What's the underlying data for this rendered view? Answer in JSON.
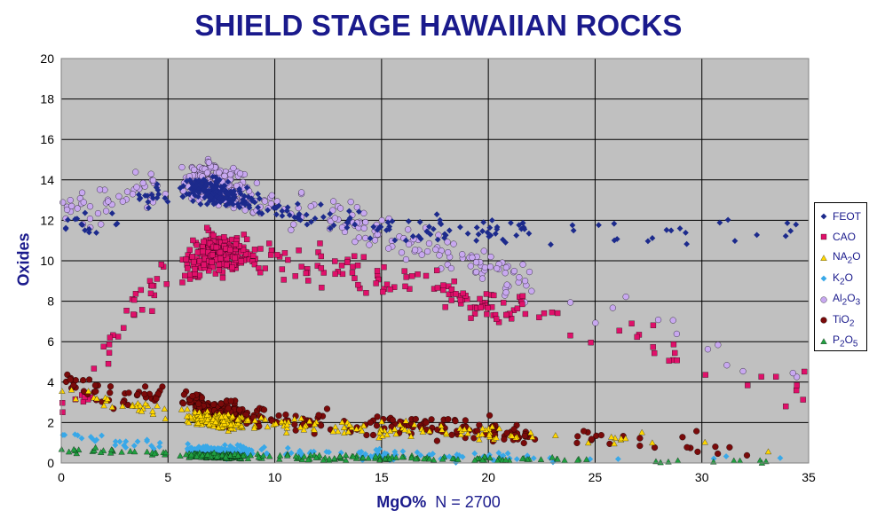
{
  "chart_data": {
    "type": "scatter",
    "title": "SHIELD STAGE HAWAIIAN ROCKS",
    "xlabel": "MgO%",
    "xlabel_note": "N = 2700",
    "ylabel": "Oxides",
    "xlim": [
      0,
      35
    ],
    "ylim": [
      0,
      20
    ],
    "xticks": [
      0,
      5,
      10,
      15,
      20,
      25,
      30,
      35
    ],
    "yticks": [
      0,
      2,
      4,
      6,
      8,
      10,
      12,
      14,
      16,
      18,
      20
    ],
    "grid": true,
    "background": "#c0c0c0",
    "legend_position": "right",
    "series": [
      {
        "name": "FEOT",
        "label_html": "FEOT",
        "marker": "diamond",
        "color": "#1c2a8c",
        "trend": [
          [
            2,
            11.8
          ],
          [
            4,
            13.4
          ],
          [
            6,
            13.6
          ],
          [
            8,
            13.2
          ],
          [
            10,
            12.6
          ],
          [
            13,
            11.9
          ],
          [
            16,
            11.6
          ],
          [
            20,
            11.5
          ],
          [
            25,
            11.4
          ],
          [
            31,
            11.4
          ],
          [
            35,
            11.6
          ]
        ]
      },
      {
        "name": "CAO",
        "label_html": "CAO",
        "marker": "square",
        "color": "#e0106a",
        "trend": [
          [
            1,
            3.0
          ],
          [
            3,
            7.5
          ],
          [
            5,
            9.5
          ],
          [
            7,
            10.5
          ],
          [
            10,
            10.2
          ],
          [
            13,
            9.6
          ],
          [
            16,
            8.9
          ],
          [
            20,
            8.0
          ],
          [
            23,
            7.2
          ],
          [
            27,
            6.0
          ],
          [
            31,
            4.6
          ],
          [
            35,
            3.3
          ]
        ]
      },
      {
        "name": "NA2O",
        "label_html": "NA<sub>2</sub>O",
        "marker": "triangle",
        "color": "#ffd700",
        "trend": [
          [
            0,
            3.5
          ],
          [
            3,
            3.0
          ],
          [
            5,
            2.5
          ],
          [
            7,
            2.1
          ],
          [
            10,
            1.9
          ],
          [
            15,
            1.7
          ],
          [
            20,
            1.5
          ],
          [
            25,
            1.2
          ],
          [
            30,
            1.0
          ],
          [
            35,
            0.4
          ]
        ]
      },
      {
        "name": "K2O",
        "label_html": "K<sub>2</sub>O",
        "marker": "diamond",
        "color": "#38a8e8",
        "trend": [
          [
            0,
            1.5
          ],
          [
            3,
            1.0
          ],
          [
            5,
            0.8
          ],
          [
            7,
            0.6
          ],
          [
            10,
            0.5
          ],
          [
            15,
            0.4
          ],
          [
            20,
            0.3
          ],
          [
            25,
            0.2
          ],
          [
            30,
            0.15
          ],
          [
            35,
            0.1
          ]
        ]
      },
      {
        "name": "AL2O3",
        "label_html": "Al<sub>2</sub>O<sub>3</sub>",
        "marker": "circle",
        "color": "#c8a8f0",
        "trend": [
          [
            0,
            12.3
          ],
          [
            3,
            13.2
          ],
          [
            5,
            14.0
          ],
          [
            7,
            13.9
          ],
          [
            10,
            12.8
          ],
          [
            13,
            11.9
          ],
          [
            16,
            11.0
          ],
          [
            20,
            9.6
          ],
          [
            23,
            8.3
          ],
          [
            27,
            7.0
          ],
          [
            31,
            5.8
          ],
          [
            35,
            4.0
          ]
        ]
      },
      {
        "name": "TIO2",
        "label_html": "TiO<sub>2</sub>",
        "marker": "circle",
        "color": "#7a0a0a",
        "trend": [
          [
            0,
            4.0
          ],
          [
            3,
            3.2
          ],
          [
            5,
            3.6
          ],
          [
            7,
            2.5
          ],
          [
            10,
            2.2
          ],
          [
            13,
            2.0
          ],
          [
            16,
            1.9
          ],
          [
            20,
            1.6
          ],
          [
            25,
            1.2
          ],
          [
            30,
            0.9
          ],
          [
            35,
            0.6
          ]
        ]
      },
      {
        "name": "P2O5",
        "label_html": "P<sub>2</sub>O<sub>5</sub>",
        "marker": "triangle",
        "color": "#20a040",
        "trend": [
          [
            0,
            0.6
          ],
          [
            3,
            0.6
          ],
          [
            5,
            0.45
          ],
          [
            7,
            0.35
          ],
          [
            10,
            0.3
          ],
          [
            15,
            0.25
          ],
          [
            20,
            0.2
          ],
          [
            25,
            0.15
          ],
          [
            30,
            0.1
          ],
          [
            35,
            0.05
          ]
        ]
      }
    ]
  }
}
